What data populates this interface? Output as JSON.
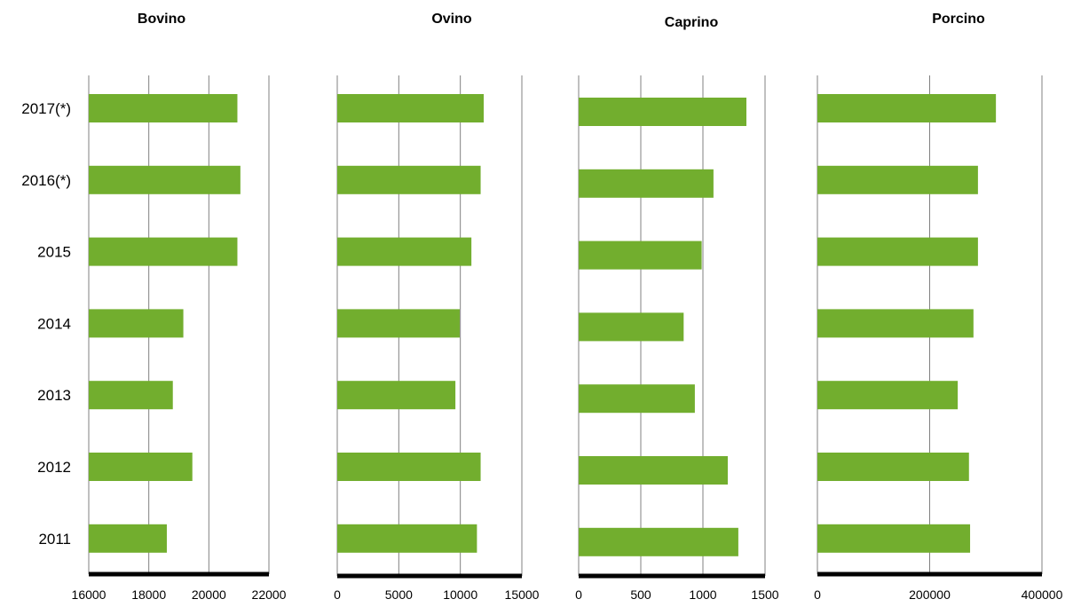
{
  "chart_data": {
    "type": "bar",
    "orientation": "horizontal",
    "bar_color": "#72AE2E",
    "gridline_color": "#808080",
    "axis_color": "#000000",
    "categories": [
      "2017(*)",
      "2016(*)",
      "2015",
      "2014",
      "2013",
      "2012",
      "2011"
    ],
    "panels": [
      {
        "title": "Bovino",
        "xlim": [
          16000,
          22000
        ],
        "ticks": [
          16000,
          18000,
          20000,
          22000
        ],
        "tick_labels": [
          "16000",
          "18000",
          "20000",
          "22000"
        ],
        "values": [
          20950,
          21050,
          20950,
          19150,
          18800,
          19450,
          18600
        ]
      },
      {
        "title": "Ovino",
        "xlim": [
          0,
          15000
        ],
        "ticks": [
          0,
          5000,
          10000,
          15000
        ],
        "tick_labels": [
          "0",
          "5000",
          "10000",
          "15000"
        ],
        "values": [
          11900,
          11650,
          10900,
          9950,
          9600,
          11650,
          11350
        ]
      },
      {
        "title": "Caprino",
        "xlim": [
          0,
          1500
        ],
        "ticks": [
          0,
          500,
          1000,
          1500
        ],
        "tick_labels": [
          "0",
          "500",
          "1000",
          "1500"
        ],
        "values": [
          1350,
          1085,
          990,
          845,
          935,
          1200,
          1285
        ]
      },
      {
        "title": "Porcino",
        "xlim": [
          0,
          400000
        ],
        "ticks": [
          0,
          200000,
          400000
        ],
        "tick_labels": [
          "0",
          "200000",
          "400000"
        ],
        "values": [
          318000,
          286000,
          286000,
          278000,
          250000,
          270000,
          272000
        ]
      }
    ]
  }
}
